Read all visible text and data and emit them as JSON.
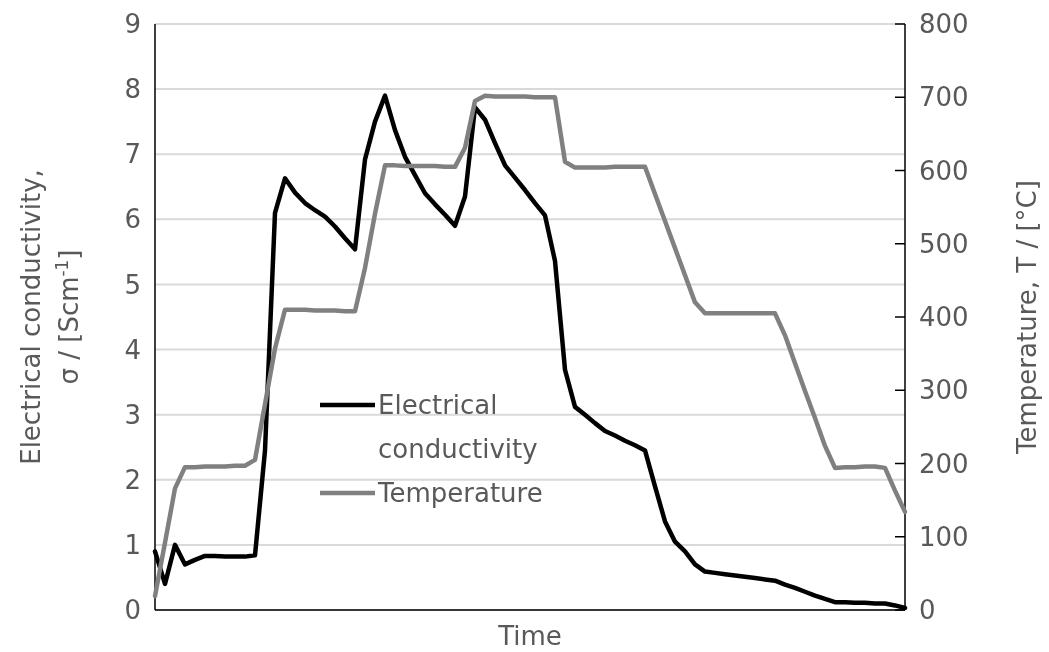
{
  "chart_data": {
    "type": "line",
    "xlabel": "Time",
    "ylabel": "Electrical conductivity, σ / [Scm$^{-1}$]",
    "y2label": "Temperature, T / [°C]",
    "categories": [
      null,
      null,
      null,
      null,
      null,
      null,
      null,
      null,
      null,
      null,
      null,
      null,
      null,
      null,
      null,
      null,
      null,
      null,
      null,
      null,
      null,
      null,
      null,
      null,
      null,
      null,
      null,
      null,
      null,
      null,
      null,
      null,
      null,
      null,
      null,
      null,
      null,
      null,
      null,
      null,
      null,
      null,
      null,
      null,
      null,
      null,
      null,
      null,
      null,
      null,
      null,
      null,
      null,
      null,
      null,
      null,
      null,
      null,
      null,
      null,
      null,
      null,
      null,
      null,
      null,
      null,
      null,
      null,
      null,
      null,
      null,
      null,
      null,
      null,
      null,
      null
    ],
    "ylim": [
      0,
      9
    ],
    "yticks": [
      0,
      1,
      2,
      3,
      4,
      5,
      6,
      7,
      8,
      9
    ],
    "y2lim": [
      0,
      800
    ],
    "y2ticks": [
      0,
      100,
      200,
      300,
      400,
      500,
      600,
      700,
      800
    ],
    "grid": "y",
    "legend": "center",
    "line_style": "solid",
    "series": [
      {
        "name": "Electrical conductivity",
        "color": "#000000",
        "values": [
          0.9,
          0.4,
          1.0,
          0.7,
          0.77,
          0.83,
          0.83,
          0.82,
          0.82,
          0.82,
          0.84,
          2.45,
          6.1,
          6.63,
          6.41,
          6.25,
          6.14,
          6.04,
          5.89,
          5.71,
          5.54,
          6.92,
          7.5,
          7.9,
          7.37,
          6.96,
          6.68,
          6.4,
          6.23,
          6.07,
          5.9,
          6.35,
          7.72,
          7.53,
          7.17,
          6.83,
          6.64,
          6.45,
          6.25,
          6.06,
          5.36,
          3.69,
          3.12,
          3.0,
          2.87,
          2.75,
          2.68,
          2.6,
          2.53,
          2.45,
          1.9,
          1.36,
          1.05,
          0.9,
          0.7,
          0.59,
          0.57,
          0.55,
          0.53,
          0.51,
          0.49,
          0.47,
          0.45,
          0.39,
          0.34,
          0.28,
          0.22,
          0.17,
          0.12,
          0.12,
          0.11,
          0.11,
          0.1,
          0.1,
          0.07,
          0.03
        ]
      },
      {
        "name": "Temperature",
        "color": "#808080",
        "axis": "y2",
        "values": [
          19,
          92,
          166,
          195,
          195,
          196,
          196,
          196,
          197,
          197,
          205,
          281,
          357,
          410,
          410,
          410,
          409,
          409,
          409,
          408,
          408,
          467,
          541,
          607,
          607,
          606,
          606,
          606,
          606,
          605,
          605,
          631,
          695,
          702,
          701,
          701,
          701,
          701,
          700,
          700,
          700,
          612,
          604,
          604,
          604,
          604,
          605,
          605,
          605,
          605,
          568,
          531,
          494,
          457,
          420,
          405,
          405,
          405,
          405,
          405,
          405,
          405,
          405,
          375,
          337,
          299,
          262,
          224,
          194,
          195,
          195,
          196,
          196,
          194,
          163,
          134
        ]
      }
    ]
  }
}
